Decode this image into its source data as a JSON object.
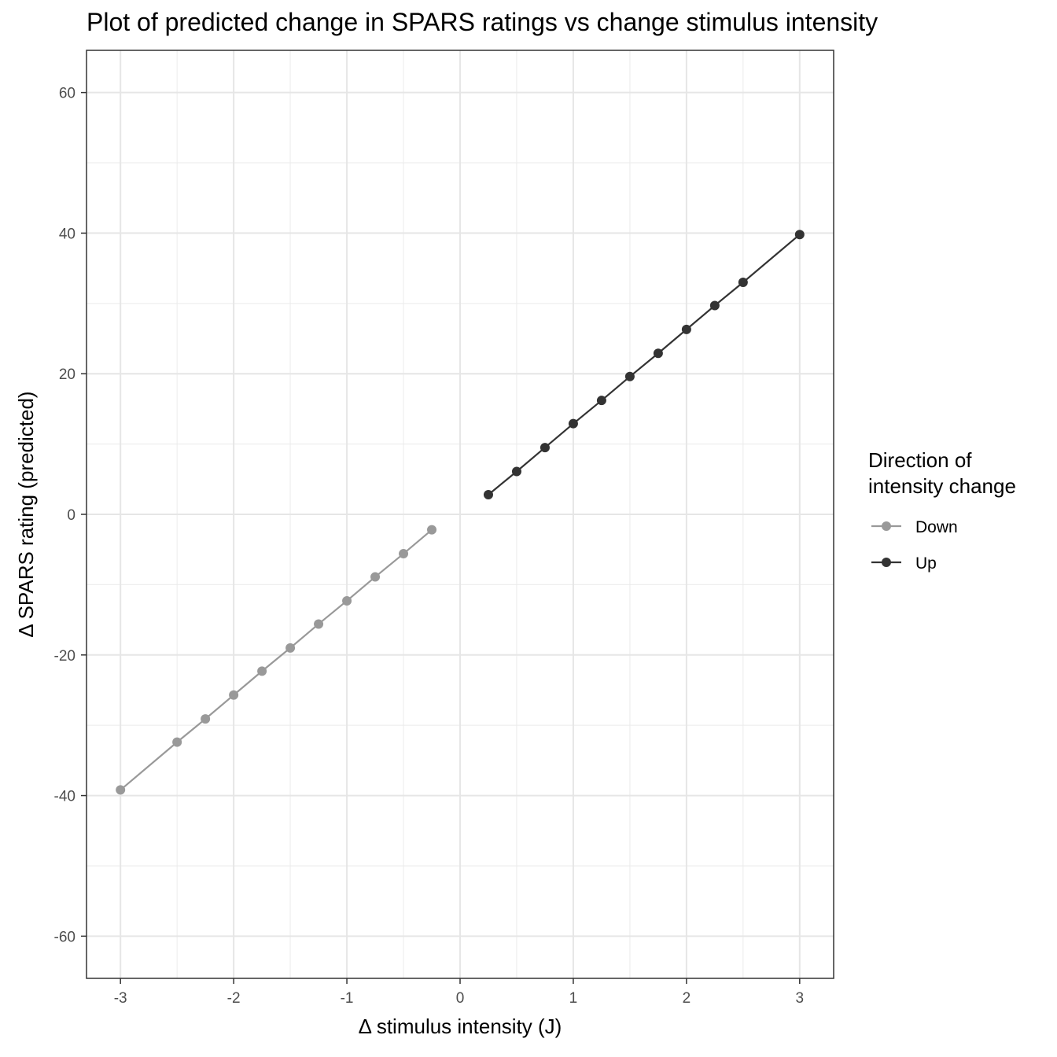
{
  "chart_data": {
    "type": "line",
    "title": "Plot of predicted change in SPARS ratings vs change stimulus intensity",
    "xlabel": "Δ stimulus intensity (J)",
    "ylabel": "Δ SPARS rating (predicted)",
    "xlim": [
      -3.3,
      3.3
    ],
    "ylim": [
      -66,
      66
    ],
    "x_ticks": [
      -3,
      -2,
      -1,
      0,
      1,
      2,
      3
    ],
    "x_tick_labels": [
      "-3",
      "-2",
      "-1",
      "0",
      "1",
      "2",
      "3"
    ],
    "y_ticks": [
      -60,
      -40,
      -20,
      0,
      20,
      40,
      60
    ],
    "y_tick_labels": [
      "-60",
      "-40",
      "-20",
      "0",
      "20",
      "40",
      "60"
    ],
    "grid": true,
    "legend": {
      "title_lines": [
        "Direction of",
        "intensity change"
      ],
      "placement": "right"
    },
    "series": [
      {
        "name": "Down",
        "color": "#999999",
        "x": [
          -3,
          -2.5,
          -2.25,
          -2,
          -1.75,
          -1.5,
          -1.25,
          -1,
          -0.75,
          -0.5,
          -0.25
        ],
        "y": [
          -39.2,
          -32.4,
          -29.1,
          -25.7,
          -22.3,
          -19.0,
          -15.6,
          -12.3,
          -8.9,
          -5.6,
          -2.2
        ]
      },
      {
        "name": "Up",
        "color": "#333333",
        "x": [
          0.25,
          0.5,
          0.75,
          1,
          1.25,
          1.5,
          1.75,
          2,
          2.25,
          2.5,
          3
        ],
        "y": [
          2.8,
          6.1,
          9.5,
          12.9,
          16.2,
          19.6,
          22.9,
          26.3,
          29.7,
          33.0,
          39.8
        ]
      }
    ]
  }
}
